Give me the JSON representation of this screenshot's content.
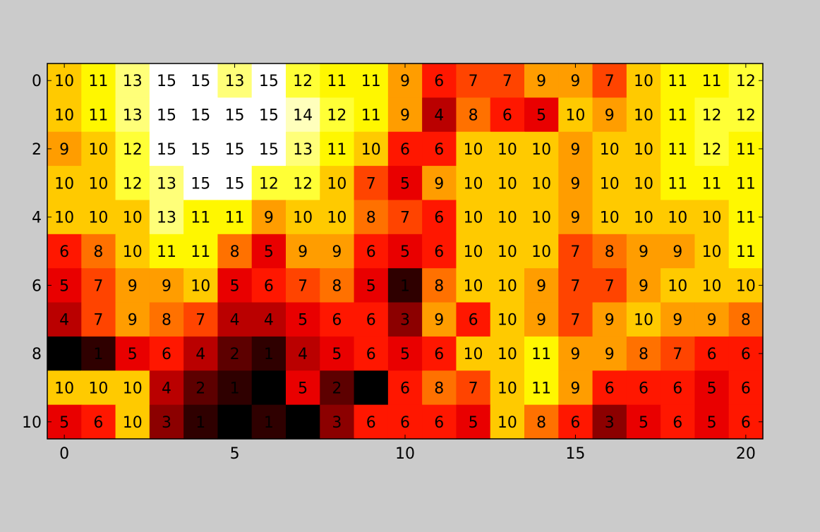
{
  "chart_data": {
    "type": "heatmap",
    "colormap": "hot",
    "vmin": 0,
    "vmax": 15,
    "grid": false,
    "x_ticks": [
      0,
      5,
      10,
      15,
      20
    ],
    "x_tick_labels": [
      "0",
      "5",
      "10",
      "15",
      "20"
    ],
    "y_ticks": [
      0,
      2,
      4,
      6,
      8,
      10
    ],
    "y_tick_labels": [
      "0",
      "2",
      "4",
      "6",
      "8",
      "10"
    ],
    "xlim": [
      -0.5,
      20.5
    ],
    "ylim": [
      10.5,
      -0.5
    ],
    "values": [
      [
        10,
        11,
        13,
        15,
        15,
        13,
        15,
        12,
        11,
        11,
        9,
        6,
        7,
        7,
        9,
        9,
        7,
        10,
        11,
        11,
        12
      ],
      [
        10,
        11,
        13,
        15,
        15,
        15,
        15,
        14,
        12,
        11,
        9,
        4,
        8,
        6,
        5,
        10,
        9,
        10,
        11,
        12,
        12
      ],
      [
        9,
        10,
        12,
        15,
        15,
        15,
        15,
        13,
        11,
        10,
        6,
        6,
        10,
        10,
        10,
        9,
        10,
        10,
        11,
        12,
        11
      ],
      [
        10,
        10,
        12,
        13,
        15,
        15,
        12,
        12,
        10,
        7,
        5,
        9,
        10,
        10,
        10,
        9,
        10,
        10,
        11,
        11,
        11
      ],
      [
        10,
        10,
        10,
        13,
        11,
        11,
        9,
        10,
        10,
        8,
        7,
        6,
        10,
        10,
        10,
        9,
        10,
        10,
        10,
        10,
        11
      ],
      [
        6,
        8,
        10,
        11,
        11,
        8,
        5,
        9,
        9,
        6,
        5,
        6,
        10,
        10,
        10,
        7,
        8,
        9,
        9,
        10,
        11
      ],
      [
        5,
        7,
        9,
        9,
        10,
        5,
        6,
        7,
        8,
        5,
        1,
        8,
        10,
        10,
        9,
        7,
        7,
        9,
        10,
        10,
        10
      ],
      [
        4,
        7,
        9,
        8,
        7,
        4,
        4,
        5,
        6,
        6,
        3,
        9,
        6,
        10,
        9,
        7,
        9,
        10,
        9,
        9,
        8
      ],
      [
        0,
        1,
        5,
        6,
        4,
        2,
        1,
        4,
        5,
        6,
        5,
        6,
        10,
        10,
        11,
        9,
        9,
        8,
        7,
        6,
        6
      ],
      [
        10,
        10,
        10,
        4,
        2,
        1,
        0,
        5,
        2,
        0,
        6,
        8,
        7,
        10,
        11,
        9,
        6,
        6,
        6,
        5,
        6
      ],
      [
        5,
        6,
        10,
        3,
        1,
        0,
        1,
        0,
        3,
        6,
        6,
        6,
        5,
        10,
        8,
        6,
        3,
        5,
        6,
        5,
        6
      ]
    ]
  }
}
